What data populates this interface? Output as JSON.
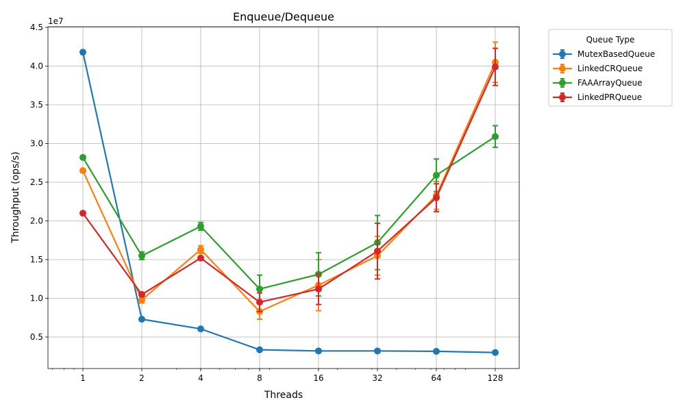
{
  "chart_data": {
    "type": "line",
    "title": "Enqueue/Dequeue",
    "xlabel": "Threads",
    "ylabel": "Throughput (ops/s)",
    "x_scale": "log2",
    "x": [
      1,
      2,
      4,
      8,
      16,
      32,
      64,
      128
    ],
    "x_tick_labels": [
      "1",
      "2",
      "4",
      "8",
      "16",
      "32",
      "64",
      "128"
    ],
    "y_scale_label": "1e7",
    "y_ticks": [
      0.5,
      1.0,
      1.5,
      2.0,
      2.5,
      3.0,
      3.5,
      4.0,
      4.5
    ],
    "y_tick_labels": [
      "0.5",
      "1.0",
      "1.5",
      "2.0",
      "2.5",
      "3.0",
      "3.5",
      "4.0",
      "4.5"
    ],
    "ylim": [
      0.1,
      4.5
    ],
    "grid": true,
    "legend_title": "Queue Type",
    "legend_position": "outside-top-right",
    "series": [
      {
        "name": "MutexBasedQueue",
        "color": "#1f77b4",
        "values": [
          4.18,
          0.73,
          0.605,
          0.335,
          0.32,
          0.32,
          0.315,
          0.3
        ],
        "errors": [
          0.02,
          0.02,
          0.02,
          0.01,
          0.01,
          0.01,
          0.01,
          0.01
        ]
      },
      {
        "name": "LinkedCRQueue",
        "color": "#ff7f0e",
        "values": [
          2.65,
          0.98,
          1.63,
          0.83,
          1.17,
          1.55,
          2.33,
          4.05
        ],
        "errors": [
          0.02,
          0.04,
          0.05,
          0.1,
          0.33,
          0.25,
          0.18,
          0.26
        ]
      },
      {
        "name": "FAAArrayQueue",
        "color": "#2ca02c",
        "values": [
          2.82,
          1.55,
          1.93,
          1.12,
          1.31,
          1.72,
          2.59,
          3.09
        ],
        "errors": [
          0.02,
          0.05,
          0.05,
          0.18,
          0.28,
          0.35,
          0.21,
          0.14
        ]
      },
      {
        "name": "LinkedPRQueue",
        "color": "#d62728",
        "values": [
          2.1,
          1.05,
          1.52,
          0.95,
          1.12,
          1.61,
          2.3,
          3.99
        ],
        "errors": [
          0.01,
          0.02,
          0.02,
          0.12,
          0.2,
          0.36,
          0.18,
          0.24
        ]
      }
    ]
  }
}
